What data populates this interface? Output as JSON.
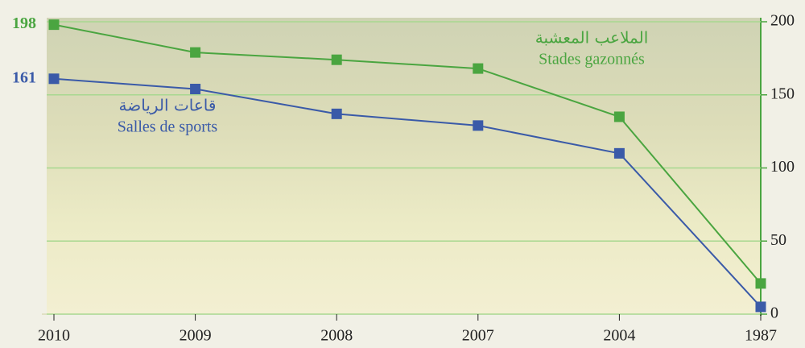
{
  "chart_data": {
    "type": "line",
    "categories": [
      "2010",
      "2009",
      "2008",
      "2007",
      "2004",
      "1987"
    ],
    "series": [
      {
        "name": "Stades gazonnés",
        "name_ar": "الملاعب المعشبة",
        "color": "#4aa540",
        "values": [
          198,
          179,
          174,
          168,
          135,
          21
        ]
      },
      {
        "name": "Salles de sports",
        "name_ar": "قاعات الرياضة",
        "color": "#3a5aa8",
        "values": [
          161,
          154,
          137,
          129,
          110,
          5
        ]
      }
    ],
    "ylim": [
      0,
      200
    ],
    "yticks": [
      0,
      50,
      100,
      150,
      200
    ],
    "y_axis_side": "right",
    "grid": true
  }
}
